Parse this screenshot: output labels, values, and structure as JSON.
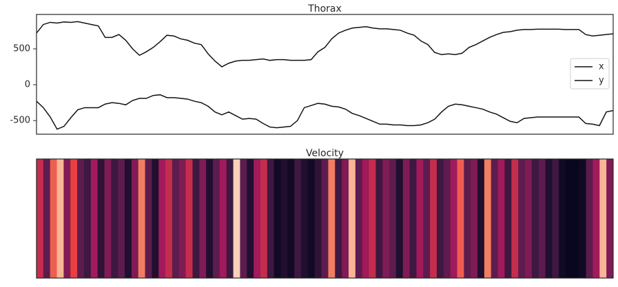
{
  "chart_data": [
    {
      "type": "line",
      "title": "Thorax",
      "ylim": [
        -690,
        980
      ],
      "yticks": [
        -500,
        0,
        500
      ],
      "grid": false,
      "legend": "center right",
      "series": [
        {
          "name": "x",
          "color": "#111111",
          "values": [
            720,
            840,
            870,
            860,
            875,
            870,
            880,
            860,
            840,
            820,
            660,
            660,
            700,
            620,
            500,
            410,
            460,
            520,
            600,
            690,
            680,
            640,
            620,
            580,
            560,
            430,
            330,
            250,
            300,
            330,
            340,
            340,
            350,
            360,
            340,
            350,
            350,
            340,
            340,
            340,
            350,
            460,
            520,
            640,
            720,
            760,
            790,
            800,
            810,
            790,
            780,
            780,
            770,
            760,
            720,
            690,
            610,
            560,
            450,
            420,
            430,
            420,
            440,
            520,
            560,
            610,
            660,
            700,
            730,
            740,
            760,
            770,
            770,
            775,
            775,
            775,
            775,
            770,
            770,
            770,
            700,
            680,
            690,
            700,
            710
          ]
        },
        {
          "name": "y",
          "color": "#111111",
          "values": [
            -230,
            -320,
            -450,
            -620,
            -580,
            -460,
            -350,
            -320,
            -320,
            -320,
            -270,
            -250,
            -260,
            -280,
            -220,
            -190,
            -190,
            -150,
            -140,
            -180,
            -180,
            -190,
            -200,
            -230,
            -250,
            -300,
            -380,
            -420,
            -380,
            -430,
            -480,
            -470,
            -480,
            -540,
            -590,
            -600,
            -590,
            -580,
            -500,
            -320,
            -290,
            -260,
            -270,
            -300,
            -310,
            -340,
            -400,
            -430,
            -470,
            -510,
            -550,
            -550,
            -560,
            -560,
            -570,
            -570,
            -560,
            -530,
            -480,
            -380,
            -300,
            -270,
            -280,
            -300,
            -320,
            -340,
            -380,
            -410,
            -460,
            -510,
            -530,
            -470,
            -460,
            -450,
            -450,
            -450,
            -450,
            -450,
            -450,
            -450,
            -540,
            -550,
            -570,
            -380,
            -360
          ]
        }
      ]
    },
    {
      "type": "heatmap",
      "title": "Velocity",
      "values": [
        0.6,
        0.3,
        0.75,
        0.9,
        0.4,
        0.7,
        0.3,
        0.2,
        0.5,
        0.15,
        0.4,
        0.2,
        0.3,
        0.1,
        0.4,
        0.8,
        0.3,
        0.1,
        0.5,
        0.6,
        0.3,
        0.4,
        0.6,
        0.2,
        0.4,
        0.1,
        0.3,
        0.5,
        0.2,
        0.95,
        0.3,
        0.1,
        0.5,
        0.6,
        0.2,
        0.05,
        0.1,
        0.05,
        0.2,
        0.1,
        0.05,
        0.15,
        0.3,
        0.8,
        0.2,
        0.4,
        0.9,
        0.3,
        0.5,
        0.6,
        0.2,
        0.4,
        0.3,
        0.1,
        0.4,
        0.2,
        0.5,
        0.3,
        0.6,
        0.2,
        0.3,
        0.5,
        0.75,
        0.3,
        0.4,
        0.1,
        0.8,
        0.3,
        0.5,
        0.2,
        0.6,
        0.3,
        0.4,
        0.2,
        0.3,
        0.1,
        0.2,
        0.05,
        0.02,
        0.02,
        0.05,
        0.3,
        0.5,
        0.9,
        0.4
      ]
    }
  ]
}
